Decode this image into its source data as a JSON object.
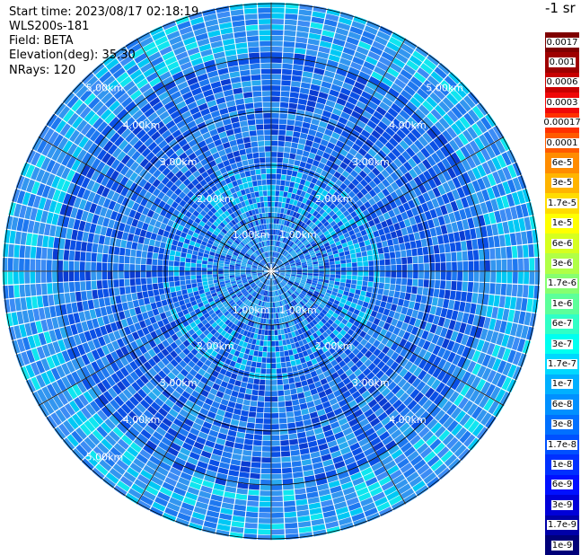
{
  "header": {
    "start_time": "Start time: 2023/08/17 02:18:19",
    "instrument": "WLS200s-181",
    "field": "Field: BETA",
    "elevation": "Elevation(deg): 35.30",
    "nrays": "NRays: 120"
  },
  "range_rings": {
    "labels": [
      "1.00km",
      "2.00km",
      "3.00km",
      "4.00km",
      "5.00km"
    ]
  },
  "colorbar": {
    "unit": "-1 sr",
    "levels": [
      {
        "label": "0.0017",
        "color": "#7f0000"
      },
      {
        "label": "0.001",
        "color": "#9e0000"
      },
      {
        "label": "0.0006",
        "color": "#c80000"
      },
      {
        "label": "0.0003",
        "color": "#f00808"
      },
      {
        "label": "0.00017",
        "color": "#ff3000"
      },
      {
        "label": "0.0001",
        "color": "#ff5a00"
      },
      {
        "label": "6e-5",
        "color": "#ff8c00"
      },
      {
        "label": "3e-5",
        "color": "#ffb400"
      },
      {
        "label": "1.7e-5",
        "color": "#ffdc00"
      },
      {
        "label": "1e-5",
        "color": "#ffff00"
      },
      {
        "label": "6e-6",
        "color": "#d6ff1e"
      },
      {
        "label": "3e-6",
        "color": "#b0ff46"
      },
      {
        "label": "1.7e-6",
        "color": "#86ff70"
      },
      {
        "label": "1e-6",
        "color": "#5cff9a"
      },
      {
        "label": "6e-7",
        "color": "#30ffc6"
      },
      {
        "label": "3e-7",
        "color": "#00fff0"
      },
      {
        "label": "1.7e-7",
        "color": "#00d8ff"
      },
      {
        "label": "1e-7",
        "color": "#00b0ff"
      },
      {
        "label": "6e-8",
        "color": "#0090ff"
      },
      {
        "label": "3e-8",
        "color": "#0070ff"
      },
      {
        "label": "1.7e-8",
        "color": "#0050ff"
      },
      {
        "label": "1e-8",
        "color": "#0030ff"
      },
      {
        "label": "6e-9",
        "color": "#0010ff"
      },
      {
        "label": "3e-9",
        "color": "#0000d8"
      },
      {
        "label": "1.7e-9",
        "color": "#0000a8"
      },
      {
        "label": "1e-9",
        "color": "#000078"
      }
    ]
  },
  "ppi_palette": [
    "#0a50e6",
    "#1464f0",
    "#1e78f0",
    "#0a3cd2",
    "#3296f0",
    "#28aaf0",
    "#00c8f5",
    "#0fe6f0",
    "#3c8cf5"
  ]
}
